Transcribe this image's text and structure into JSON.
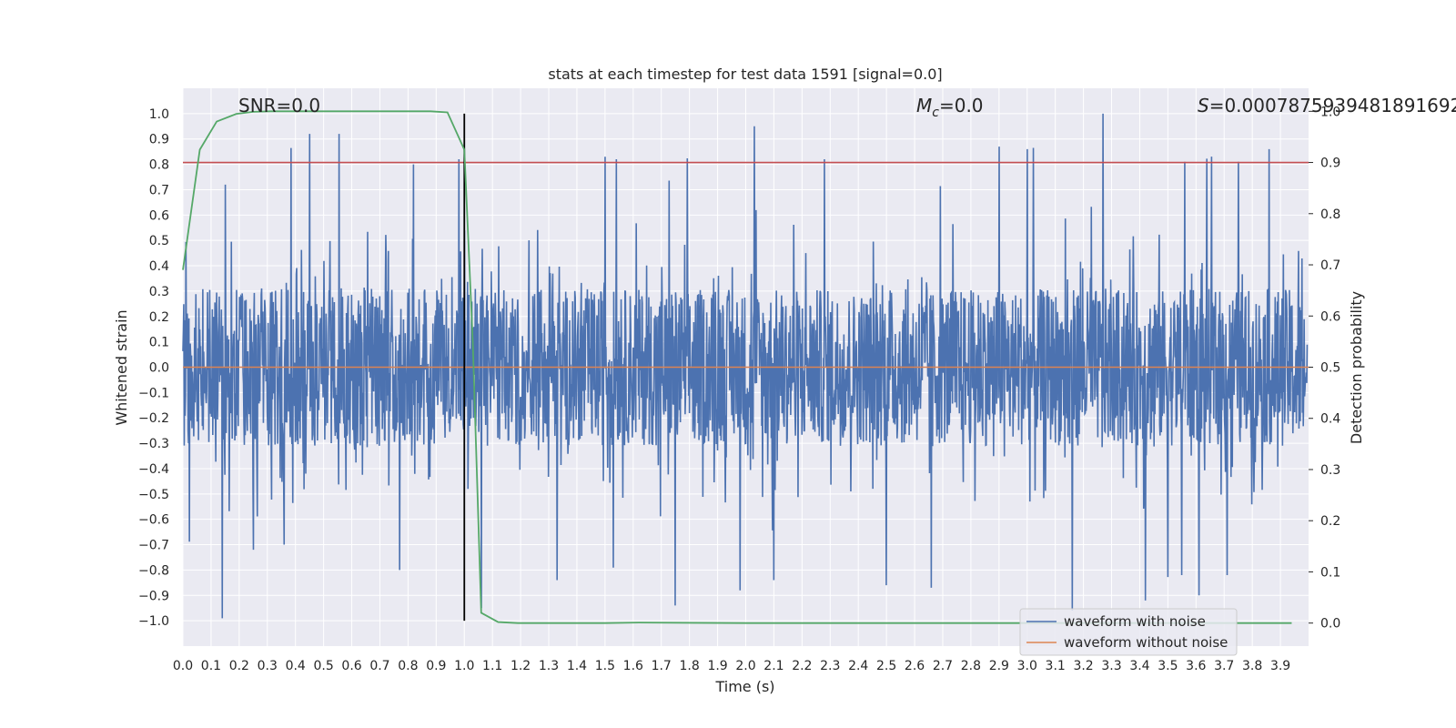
{
  "chart_data": {
    "type": "line",
    "title": "stats at each timestep for test data 1591 [signal=0.0]",
    "xlabel": "Time (s)",
    "ylabel": "Whitened strain",
    "y2label": "Detection probability",
    "xlim": [
      0.0,
      4.0
    ],
    "ylim": [
      -1.1,
      1.1
    ],
    "y2lim": [
      -0.045,
      1.045
    ],
    "grid": true,
    "legend_position": "lower right",
    "x_ticks": [
      "0.0",
      "0.1",
      "0.2",
      "0.3",
      "0.4",
      "0.5",
      "0.6",
      "0.7",
      "0.8",
      "0.9",
      "1.0",
      "1.1",
      "1.2",
      "1.3",
      "1.4",
      "1.5",
      "1.6",
      "1.7",
      "1.8",
      "1.9",
      "2.0",
      "2.1",
      "2.2",
      "2.3",
      "2.4",
      "2.5",
      "2.6",
      "2.7",
      "2.8",
      "2.9",
      "3.0",
      "3.1",
      "3.2",
      "3.3",
      "3.4",
      "3.5",
      "3.6",
      "3.7",
      "3.8",
      "3.9"
    ],
    "y_ticks": [
      "1.0",
      "0.9",
      "0.8",
      "0.7",
      "0.6",
      "0.5",
      "0.4",
      "0.3",
      "0.2",
      "0.1",
      "0.0",
      "−0.1",
      "−0.2",
      "−0.3",
      "−0.4",
      "−0.5",
      "−0.6",
      "−0.7",
      "−0.8",
      "−0.9",
      "−1.0"
    ],
    "y2_ticks": [
      "1.0",
      "0.9",
      "0.8",
      "0.7",
      "0.6",
      "0.5",
      "0.4",
      "0.3",
      "0.2",
      "0.1",
      "0.0"
    ],
    "annotations": {
      "snr": "SNR=0.0",
      "mc_symbol": "M",
      "mc_sub": "c",
      "mc_value": "=0.0",
      "s_symbol": "S",
      "s_value": "=0.0007875939481891692"
    },
    "threshold": {
      "value": 0.9,
      "axis": "right",
      "color": "#c44e52"
    },
    "vertical_marker": {
      "x": 1.0,
      "y_range": [
        -1.0,
        1.0
      ],
      "color": "#000000"
    },
    "series": [
      {
        "name": "waveform with noise",
        "color": "#4c72b0",
        "axis": "left",
        "style": "dense noise, amplitude mostly within ±0.45, peaks near ±1.0",
        "peaks_x": [
          0.15,
          0.45,
          0.555,
          0.82,
          0.98,
          1.5,
          1.54,
          2.03,
          2.28,
          2.9,
          3.0,
          3.27,
          3.56,
          3.75,
          3.86
        ],
        "peaks_y": [
          0.72,
          0.92,
          0.92,
          0.8,
          0.82,
          0.83,
          0.82,
          0.95,
          0.82,
          0.87,
          0.86,
          1.0,
          0.81,
          0.81,
          0.86
        ],
        "troughs_x": [
          0.14,
          0.25,
          0.36,
          0.77,
          1.06,
          1.33,
          1.75,
          1.98,
          2.1,
          2.5,
          2.66,
          3.16,
          3.42,
          3.55,
          3.61,
          3.71
        ],
        "troughs_y": [
          -0.99,
          -0.72,
          -0.7,
          -0.8,
          -0.95,
          -0.84,
          -0.94,
          -0.88,
          -0.84,
          -0.86,
          -0.87,
          -0.96,
          -0.92,
          -0.82,
          -0.9,
          -0.82
        ]
      },
      {
        "name": "waveform without noise",
        "color": "#dd8452",
        "axis": "left",
        "x": [
          0.0,
          4.0
        ],
        "y": [
          0.0,
          0.0
        ]
      },
      {
        "name": "detection probability",
        "color": "#55a868",
        "axis": "right",
        "x": [
          0.0,
          0.06,
          0.12,
          0.19,
          0.25,
          0.31,
          0.5,
          0.75,
          0.88,
          0.94,
          1.0,
          1.03,
          1.06,
          1.12,
          1.19,
          1.5,
          1.62,
          2.0,
          2.5,
          3.0,
          3.5,
          3.94
        ],
        "y": [
          0.69,
          0.925,
          0.98,
          0.995,
          0.999,
          1.0,
          1.0,
          1.0,
          1.0,
          0.998,
          0.925,
          0.55,
          0.02,
          0.002,
          0.0,
          0.0,
          0.001,
          0.0,
          0.0,
          0.0,
          0.0,
          0.0
        ]
      }
    ]
  },
  "legend": {
    "items": [
      {
        "label": "waveform with noise",
        "color": "#4c72b0"
      },
      {
        "label": "waveform without noise",
        "color": "#dd8452"
      }
    ]
  }
}
